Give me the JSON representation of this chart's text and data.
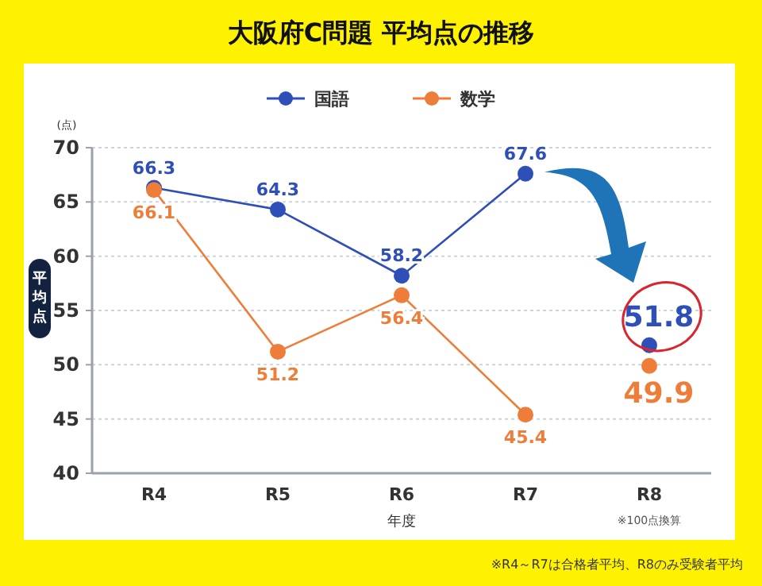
{
  "chart_data": {
    "type": "line",
    "title": "大阪府C問題 平均点の推移",
    "xlabel": "年度",
    "ylabel": "平均点",
    "categories": [
      "R4",
      "R5",
      "R6",
      "R7",
      "R8"
    ],
    "series": [
      {
        "name": "国語",
        "color": "#2f4fb8",
        "values": [
          66.3,
          64.3,
          58.2,
          67.6,
          null
        ]
      },
      {
        "name": "数学",
        "color": "#ee7d3a",
        "values": [
          66.1,
          51.2,
          56.4,
          45.4,
          null
        ]
      },
      {
        "type": "scatter",
        "color": "#2f4fb8",
        "x": [
          "R8"
        ],
        "values": [
          51.8
        ]
      },
      {
        "type": "scatter",
        "color": "#ee7d3a",
        "x": [
          "R8"
        ],
        "values": [
          49.9
        ]
      }
    ],
    "ylim": [
      40,
      70
    ],
    "yticks": [
      40,
      45,
      50,
      55,
      60,
      65,
      70
    ],
    "grid": "y",
    "legend": "top",
    "marker": "circle",
    "data_labels": true,
    "annotations": [
      "(点)",
      "※100点換算",
      "※R4～R7は合格者平均、R8のみ受験者平均"
    ]
  }
}
